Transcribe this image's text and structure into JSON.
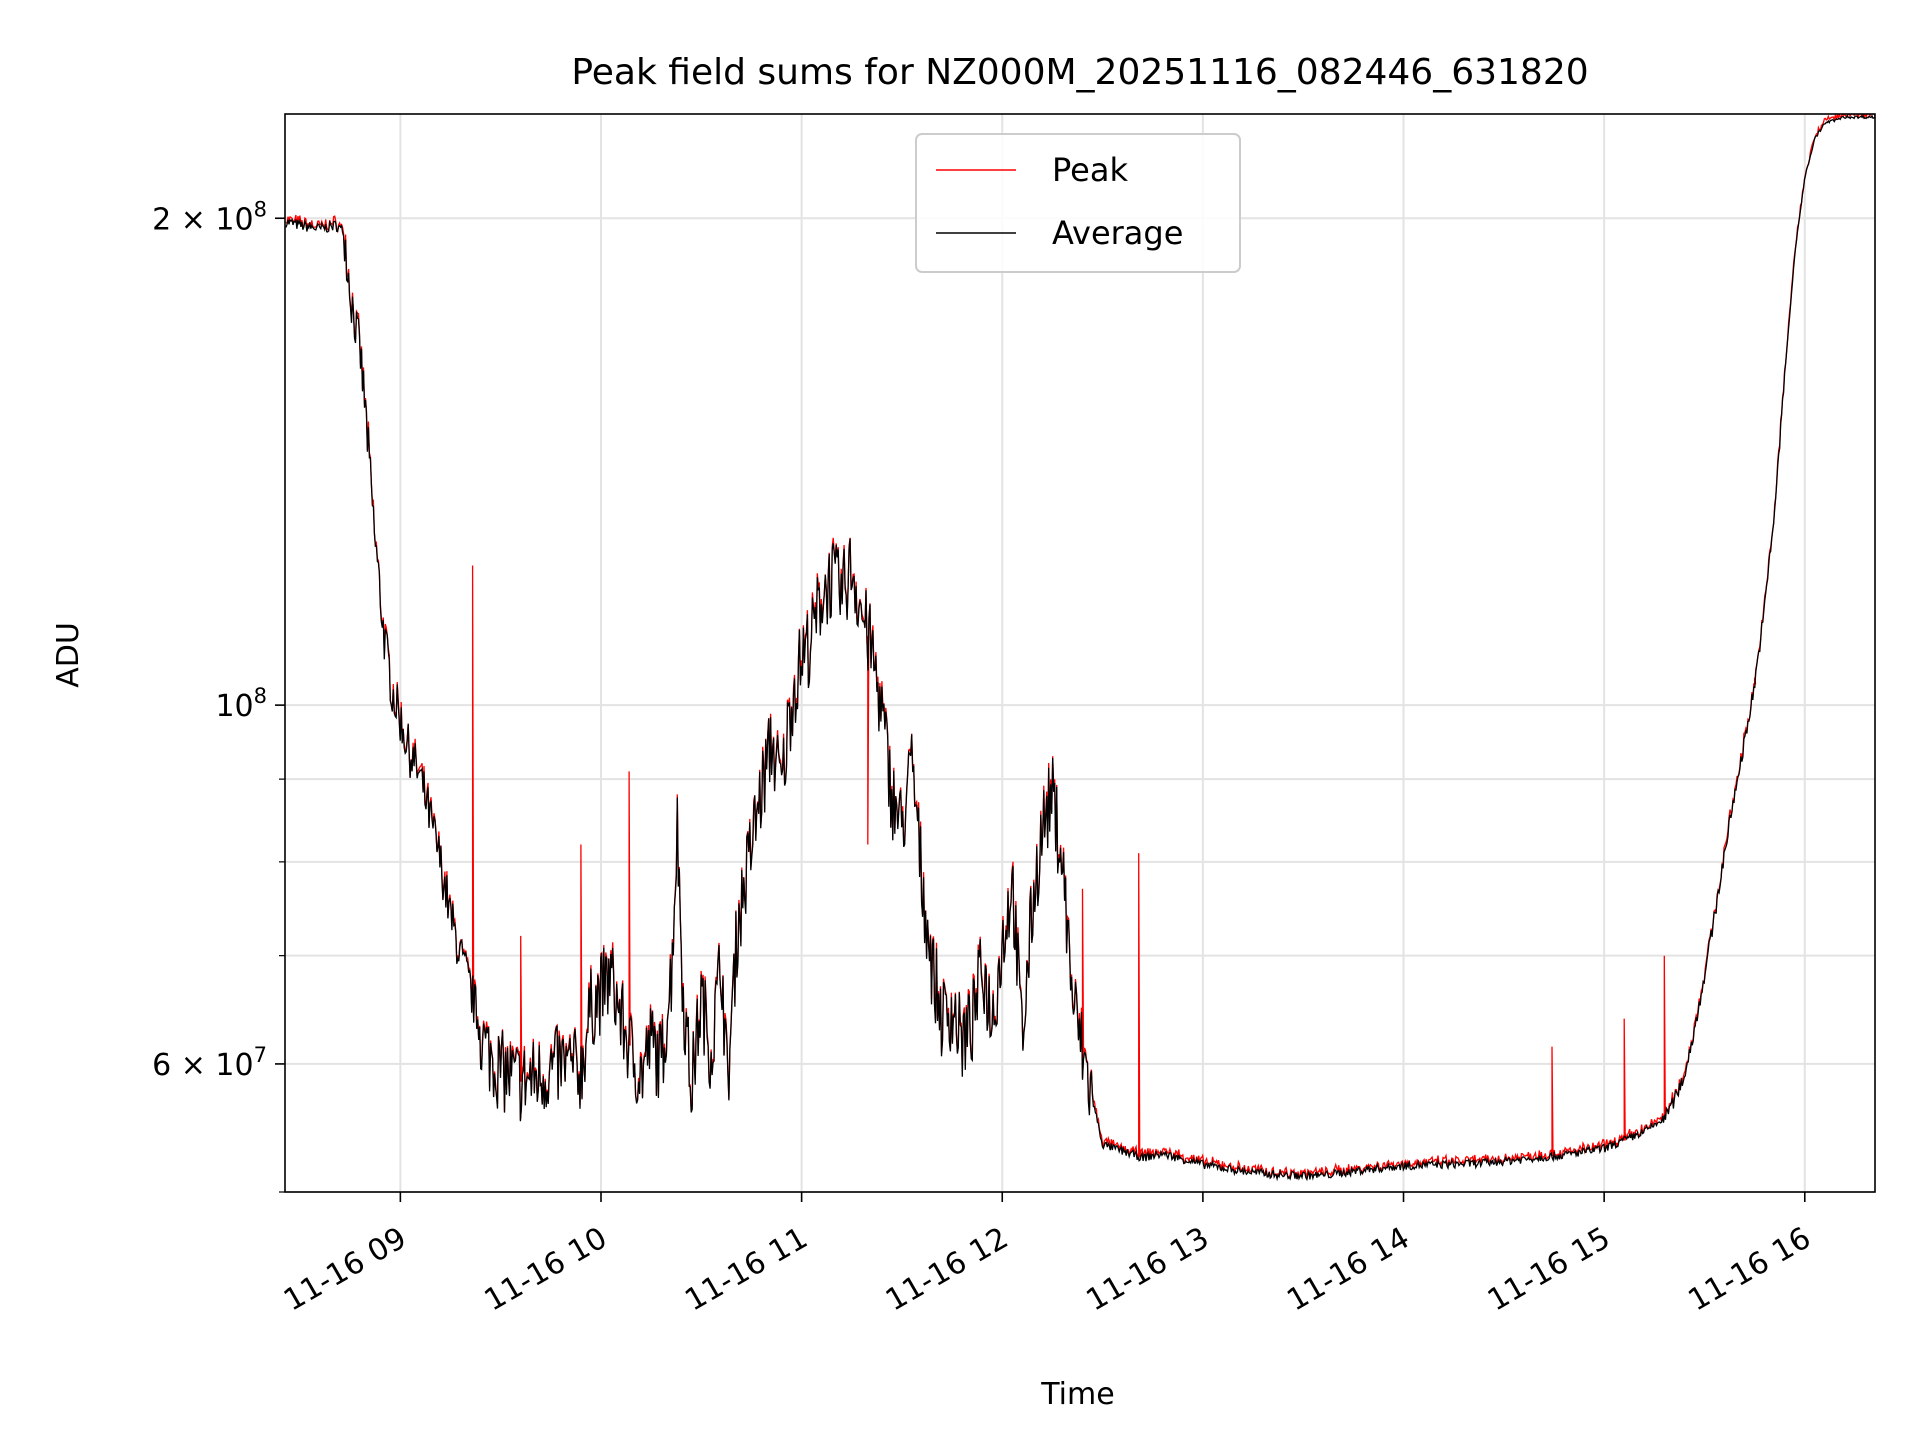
{
  "chart_data": {
    "type": "line",
    "title": "Peak field sums for NZ000M_20251116_082446_631820",
    "xlabel": "Time",
    "ylabel": "ADU",
    "yscale": "log",
    "xlim_hours": [
      8.425,
      16.35
    ],
    "ylim": [
      50000000,
      232000000
    ],
    "grid": true,
    "legend_position": "upper center",
    "x_ticks": [
      {
        "hour": 9,
        "label": "11-16 09"
      },
      {
        "hour": 10,
        "label": "11-16 10"
      },
      {
        "hour": 11,
        "label": "11-16 11"
      },
      {
        "hour": 12,
        "label": "11-16 12"
      },
      {
        "hour": 13,
        "label": "11-16 13"
      },
      {
        "hour": 14,
        "label": "11-16 14"
      },
      {
        "hour": 15,
        "label": "11-16 15"
      },
      {
        "hour": 16,
        "label": "11-16 16"
      }
    ],
    "y_major_ticks": [
      {
        "value": 60000000,
        "mantissa": "6 × 10",
        "exp": "7"
      },
      {
        "value": 100000000,
        "mantissa": "10",
        "exp": "8"
      },
      {
        "value": 200000000,
        "mantissa": "2 × 10",
        "exp": "8"
      }
    ],
    "y_minor_ticks": [
      50000000,
      70000000,
      80000000,
      90000000
    ],
    "series": [
      {
        "name": "Peak",
        "color": "#ff0000"
      },
      {
        "name": "Average",
        "color": "#000000"
      }
    ],
    "average_points": [
      [
        8.43,
        199
      ],
      [
        8.5,
        198
      ],
      [
        8.6,
        197
      ],
      [
        8.68,
        198
      ],
      [
        8.72,
        196
      ],
      [
        8.75,
        180
      ],
      [
        8.8,
        165
      ],
      [
        8.83,
        150
      ],
      [
        8.87,
        128
      ],
      [
        8.92,
        110
      ],
      [
        8.96,
        102
      ],
      [
        9.0,
        98
      ],
      [
        9.04,
        94
      ],
      [
        9.1,
        90
      ],
      [
        9.14,
        86
      ],
      [
        9.2,
        80
      ],
      [
        9.25,
        74
      ],
      [
        9.3,
        70
      ],
      [
        9.36,
        66
      ],
      [
        9.42,
        61.5
      ],
      [
        9.5,
        59.5
      ],
      [
        9.6,
        58.5
      ],
      [
        9.7,
        59
      ],
      [
        9.8,
        60
      ],
      [
        9.9,
        59.5
      ],
      [
        9.95,
        65
      ],
      [
        10.0,
        66.5
      ],
      [
        10.05,
        68
      ],
      [
        10.1,
        64
      ],
      [
        10.15,
        61
      ],
      [
        10.2,
        59
      ],
      [
        10.25,
        62
      ],
      [
        10.3,
        60
      ],
      [
        10.35,
        68
      ],
      [
        10.38,
        84
      ],
      [
        10.41,
        66
      ],
      [
        10.45,
        58
      ],
      [
        10.5,
        66
      ],
      [
        10.55,
        61
      ],
      [
        10.6,
        70
      ],
      [
        10.63,
        58
      ],
      [
        10.68,
        73
      ],
      [
        10.72,
        78
      ],
      [
        10.78,
        86
      ],
      [
        10.85,
        95
      ],
      [
        10.9,
        89
      ],
      [
        10.95,
        101
      ],
      [
        11.0,
        107
      ],
      [
        11.05,
        110
      ],
      [
        11.1,
        117
      ],
      [
        11.15,
        120
      ],
      [
        11.2,
        117
      ],
      [
        11.25,
        122
      ],
      [
        11.3,
        114
      ],
      [
        11.35,
        108
      ],
      [
        11.4,
        99
      ],
      [
        11.45,
        88
      ],
      [
        11.5,
        84
      ],
      [
        11.55,
        92
      ],
      [
        11.6,
        78
      ],
      [
        11.65,
        69
      ],
      [
        11.7,
        64
      ],
      [
        11.75,
        65
      ],
      [
        11.8,
        62
      ],
      [
        11.85,
        63.5
      ],
      [
        11.9,
        69
      ],
      [
        11.95,
        64
      ],
      [
        12.0,
        71
      ],
      [
        12.05,
        78
      ],
      [
        12.1,
        62
      ],
      [
        12.15,
        75
      ],
      [
        12.2,
        84
      ],
      [
        12.25,
        88
      ],
      [
        12.3,
        80
      ],
      [
        12.35,
        66
      ],
      [
        12.4,
        61
      ],
      [
        12.45,
        57
      ],
      [
        12.5,
        53.5
      ],
      [
        12.6,
        53
      ],
      [
        12.7,
        52.5
      ],
      [
        12.8,
        52.8
      ],
      [
        13.0,
        52
      ],
      [
        13.2,
        51.5
      ],
      [
        13.4,
        51.2
      ],
      [
        13.6,
        51.2
      ],
      [
        13.8,
        51.6
      ],
      [
        14.0,
        51.9
      ],
      [
        14.2,
        52.0
      ],
      [
        14.4,
        52.1
      ],
      [
        14.6,
        52.4
      ],
      [
        14.8,
        52.7
      ],
      [
        15.0,
        53.2
      ],
      [
        15.1,
        53.8
      ],
      [
        15.2,
        54.5
      ],
      [
        15.3,
        55.5
      ],
      [
        15.35,
        57
      ],
      [
        15.4,
        59
      ],
      [
        15.45,
        63
      ],
      [
        15.5,
        68
      ],
      [
        15.55,
        74
      ],
      [
        15.6,
        81
      ],
      [
        15.65,
        88
      ],
      [
        15.7,
        95
      ],
      [
        15.75,
        103
      ],
      [
        15.8,
        115
      ],
      [
        15.85,
        132
      ],
      [
        15.9,
        160
      ],
      [
        15.95,
        190
      ],
      [
        16.0,
        212
      ],
      [
        16.05,
        224
      ],
      [
        16.1,
        229
      ],
      [
        16.2,
        231
      ],
      [
        16.35,
        231
      ]
    ],
    "peak_spikes": [
      [
        9.36,
        122
      ],
      [
        9.6,
        72
      ],
      [
        9.9,
        82
      ],
      [
        10.14,
        91
      ],
      [
        11.33,
        82
      ],
      [
        12.4,
        77
      ],
      [
        12.68,
        81
      ],
      [
        14.74,
        61.5
      ],
      [
        15.1,
        64
      ],
      [
        15.3,
        70
      ],
      [
        15.75,
        104
      ]
    ]
  }
}
